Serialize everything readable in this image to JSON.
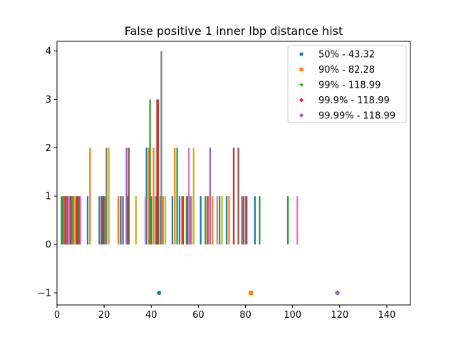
{
  "chart_data": {
    "type": "bar",
    "title": "False positive 1 inner lbp distance hist",
    "xlabel": "",
    "ylabel": "",
    "xlim": [
      0,
      150
    ],
    "ylim": [
      -1.25,
      4.2
    ],
    "xticks": [
      0,
      20,
      40,
      60,
      80,
      100,
      120,
      140
    ],
    "yticks": [
      -1,
      0,
      1,
      2,
      3,
      4
    ],
    "grid": false,
    "legend_position": "upper-right",
    "bar_width": 0.7,
    "series": [
      {
        "name": "50% - 43.32",
        "color": "#1f77b4",
        "marker": "circle",
        "marker_point": [
          43.32,
          -1
        ],
        "bars": [
          [
            2,
            1
          ],
          [
            4,
            1
          ],
          [
            7,
            1
          ],
          [
            13,
            1
          ],
          [
            18,
            1
          ],
          [
            27,
            1
          ],
          [
            38,
            2
          ],
          [
            40,
            1
          ],
          [
            44,
            1
          ],
          [
            49,
            1
          ],
          [
            52,
            1
          ],
          [
            61,
            1
          ],
          [
            72,
            1
          ],
          [
            84,
            1
          ]
        ]
      },
      {
        "name": "90% - 82.28",
        "color": "#ff7f0e",
        "marker": "square",
        "marker_point": [
          82.28,
          -1
        ],
        "bars": [
          [
            3,
            1
          ],
          [
            5,
            1
          ],
          [
            8,
            1
          ],
          [
            14,
            2
          ],
          [
            19,
            1
          ],
          [
            26,
            1
          ],
          [
            39,
            2
          ],
          [
            41,
            2
          ],
          [
            45,
            1
          ],
          [
            50,
            2
          ],
          [
            53,
            1
          ],
          [
            57,
            1
          ],
          [
            66,
            1
          ],
          [
            73,
            1
          ]
        ]
      },
      {
        "name": "99% - 118.99",
        "color": "#2ca02c",
        "marker": "star",
        "marker_point": [
          118.99,
          -1
        ],
        "bars": [
          [
            2.5,
            1
          ],
          [
            5.5,
            1
          ],
          [
            9,
            1
          ],
          [
            20,
            1
          ],
          [
            28,
            1
          ],
          [
            39.5,
            3
          ],
          [
            42,
            1
          ],
          [
            51,
            2
          ],
          [
            55,
            1
          ],
          [
            63,
            1
          ],
          [
            69,
            1
          ],
          [
            86,
            1
          ],
          [
            98,
            1
          ]
        ]
      },
      {
        "name": "99.9% - 118.99",
        "color": "#d62728",
        "marker": "diamond",
        "marker_point": [
          118.99,
          -1
        ],
        "bars": [
          [
            3.5,
            1
          ],
          [
            6,
            1
          ],
          [
            8.5,
            1
          ],
          [
            19.5,
            1
          ],
          [
            30,
            1
          ],
          [
            42.5,
            3
          ],
          [
            53.5,
            1
          ],
          [
            64,
            1
          ],
          [
            75,
            2
          ],
          [
            79,
            1
          ]
        ]
      },
      {
        "name": "99.99% - 118.99",
        "color": "#9467bd",
        "marker": "diamond",
        "marker_point": [
          118.99,
          -1
        ],
        "bars": [
          [
            4,
            1
          ],
          [
            6.5,
            1
          ],
          [
            20.5,
            1
          ],
          [
            29.5,
            2
          ],
          [
            56.5,
            1
          ],
          [
            65,
            2
          ],
          [
            80,
            1
          ]
        ]
      }
    ],
    "extra_bar_series": [
      {
        "color": "#8c564b",
        "bars": [
          [
            4.5,
            1
          ],
          [
            9.5,
            1
          ],
          [
            19,
            1
          ],
          [
            30.5,
            2
          ],
          [
            43,
            3
          ],
          [
            55.5,
            1
          ],
          [
            77,
            2
          ],
          [
            80.5,
            1
          ]
        ]
      },
      {
        "color": "#e377c2",
        "bars": [
          [
            5,
            1
          ],
          [
            10,
            1
          ],
          [
            27.5,
            1
          ],
          [
            37.5,
            1
          ],
          [
            56,
            2
          ],
          [
            68,
            1
          ],
          [
            102,
            1
          ]
        ]
      },
      {
        "color": "#7f7f7f",
        "bars": [
          [
            6.8,
            1
          ],
          [
            21,
            2
          ],
          [
            44.3,
            4
          ],
          [
            78.5,
            1
          ]
        ]
      },
      {
        "color": "#bcbd22",
        "bars": [
          [
            7.5,
            1
          ],
          [
            22,
            2
          ],
          [
            33.5,
            1
          ],
          [
            46,
            1
          ],
          [
            58,
            2
          ],
          [
            70,
            1
          ]
        ]
      }
    ]
  }
}
